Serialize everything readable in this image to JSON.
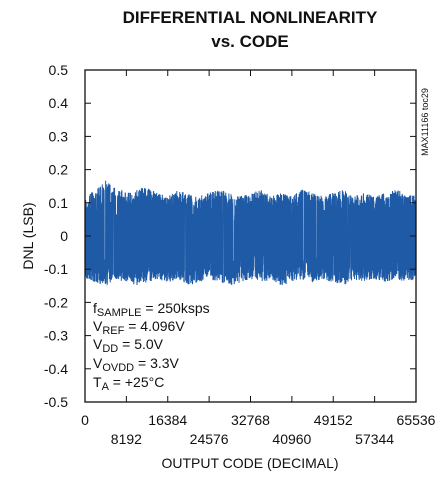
{
  "chart_data": {
    "type": "line",
    "title_line1": "DIFFERENTIAL NONLINEARITY",
    "title_line2": "vs. CODE",
    "part_number": "MAX11166 toc29",
    "xlabel": "OUTPUT CODE (DECIMAL)",
    "ylabel": "DNL (LSB)",
    "xlim": [
      0,
      65536
    ],
    "ylim": [
      -0.5,
      0.5
    ],
    "x_ticks_row1": [
      "0",
      "16384",
      "32768",
      "49152",
      "65536"
    ],
    "x_ticks_row1_values": [
      0,
      16384,
      32768,
      49152,
      65536
    ],
    "x_ticks_row2": [
      "8192",
      "24576",
      "40960",
      "57344"
    ],
    "x_ticks_row2_values": [
      8192,
      24576,
      40960,
      57344
    ],
    "y_ticks": [
      "0.5",
      "0.4",
      "0.3",
      "0.2",
      "0.1",
      "0",
      "-0.1",
      "-0.2",
      "-0.3",
      "-0.4",
      "-0.5"
    ],
    "y_tick_values": [
      0.5,
      0.4,
      0.3,
      0.2,
      0.1,
      0,
      -0.1,
      -0.2,
      -0.3,
      -0.4,
      -0.5
    ],
    "grid": false,
    "series_color": "#1f5aa6",
    "series": [
      {
        "x": [
          0,
          2048,
          4096,
          6144,
          8192,
          10240,
          12288,
          14336,
          16384,
          18432,
          20480,
          22528,
          24576,
          26624,
          28672,
          30720,
          32768,
          34816,
          36864,
          38912,
          40960,
          43008,
          45056,
          47104,
          49152,
          51200,
          53248,
          55296,
          57344,
          59392,
          61440,
          63488,
          65535
        ],
        "upper": [
          0.12,
          0.14,
          0.17,
          0.15,
          0.13,
          0.14,
          0.15,
          0.13,
          0.12,
          0.14,
          0.13,
          0.12,
          0.13,
          0.14,
          0.13,
          0.12,
          0.13,
          0.14,
          0.12,
          0.13,
          0.12,
          0.14,
          0.13,
          0.12,
          0.13,
          0.14,
          0.12,
          0.13,
          0.12,
          0.13,
          0.14,
          0.13,
          0.12
        ],
        "lower": [
          -0.13,
          -0.14,
          -0.15,
          -0.13,
          -0.14,
          -0.15,
          -0.14,
          -0.13,
          -0.14,
          -0.13,
          -0.15,
          -0.14,
          -0.13,
          -0.14,
          -0.15,
          -0.14,
          -0.13,
          -0.14,
          -0.13,
          -0.15,
          -0.14,
          -0.13,
          -0.14,
          -0.13,
          -0.14,
          -0.15,
          -0.13,
          -0.14,
          -0.13,
          -0.14,
          -0.13,
          -0.14,
          -0.13
        ]
      }
    ],
    "conditions": {
      "l1_a": "f",
      "l1_sub": "SAMPLE",
      "l1_b": " = 250ksps",
      "l2_a": "V",
      "l2_sub": "REF",
      "l2_b": " = 4.096V",
      "l3_a": "V",
      "l3_sub": "DD",
      "l3_b": " = 5.0V",
      "l4_a": "V",
      "l4_sub": "OVDD",
      "l4_b": " = 3.3V",
      "l5_a": "T",
      "l5_sub": "A",
      "l5_b": " = +25°C"
    }
  }
}
